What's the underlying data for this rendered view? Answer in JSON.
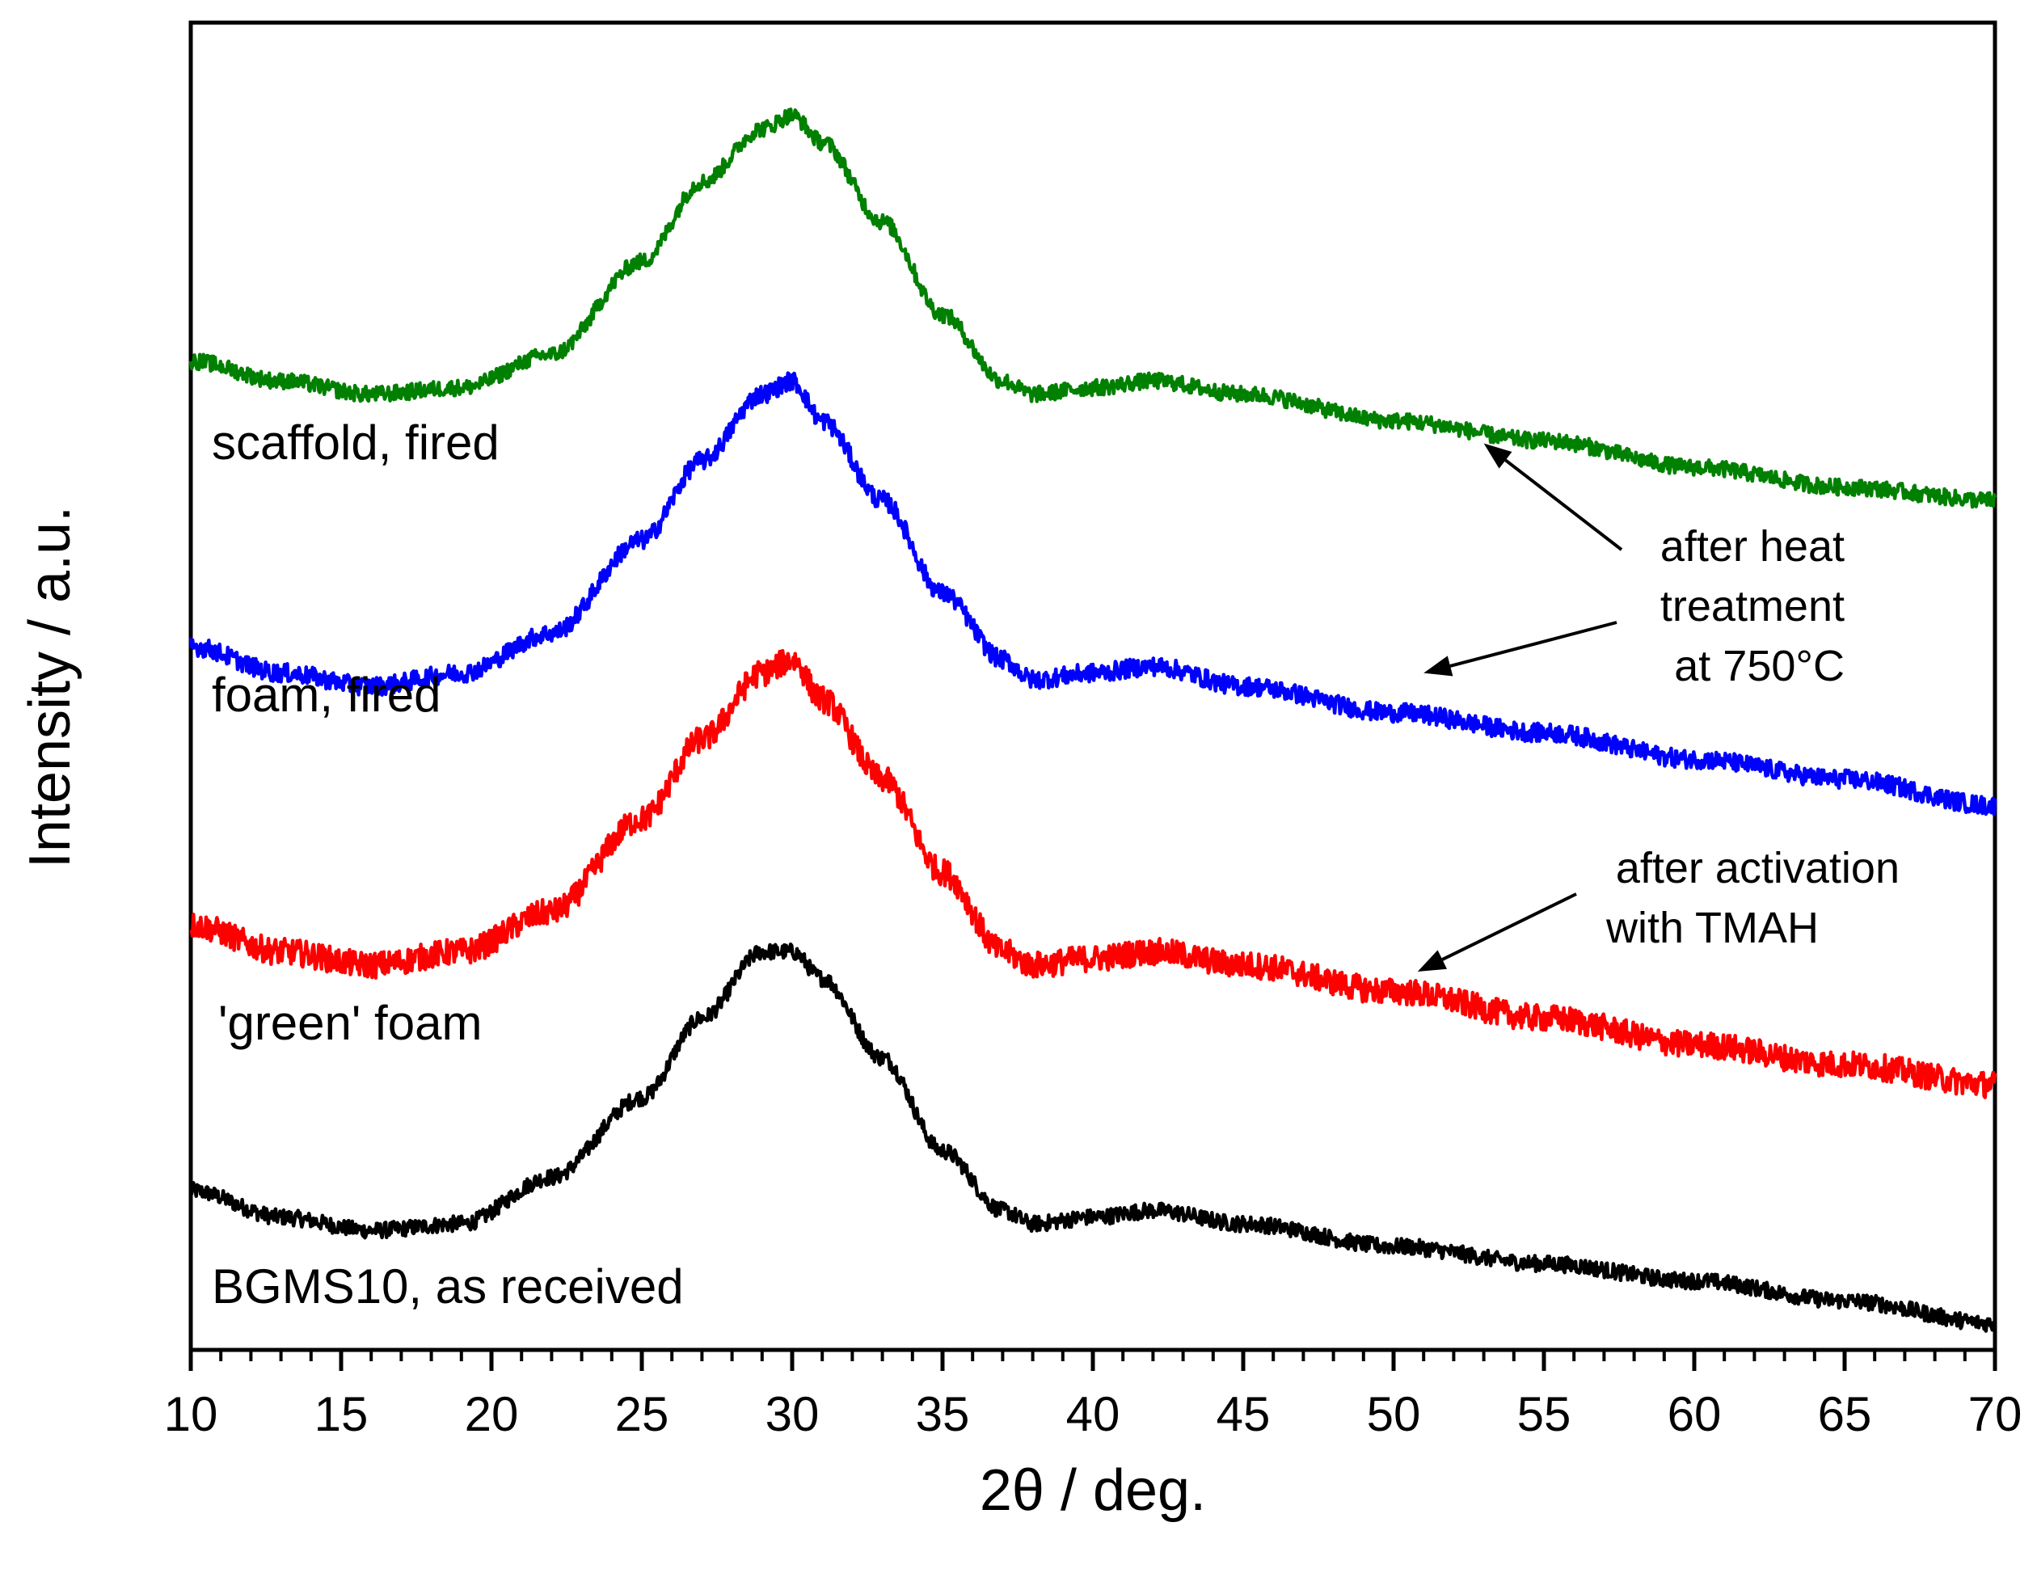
{
  "chart_data": {
    "type": "line",
    "xlabel": "2θ / deg.",
    "ylabel": "Intensity / a.u.",
    "xlim": [
      10,
      70
    ],
    "ylim": [
      0,
      1
    ],
    "xticks": [
      10,
      15,
      20,
      25,
      30,
      35,
      40,
      45,
      50,
      55,
      60,
      65,
      70
    ],
    "grid": false,
    "y_tick_labels_shown": false,
    "series": [
      {
        "name": "BGMS10, as received",
        "color": "#000000",
        "noise": 0.006,
        "x": [
          10,
          13,
          16,
          19,
          22,
          25,
          27,
          29,
          30,
          31,
          33,
          35,
          37,
          38,
          40,
          42,
          45,
          50,
          55,
          60,
          65,
          70
        ],
        "values": [
          0.12,
          0.1,
          0.09,
          0.095,
          0.13,
          0.19,
          0.25,
          0.3,
          0.3,
          0.28,
          0.22,
          0.15,
          0.105,
          0.095,
          0.1,
          0.105,
          0.095,
          0.078,
          0.065,
          0.052,
          0.037,
          0.02
        ]
      },
      {
        "name": "'green' foam",
        "color": "#ff0000",
        "noise": 0.01,
        "x": [
          10,
          13,
          16,
          19,
          22,
          25,
          27,
          29,
          30,
          31,
          33,
          35,
          37,
          38,
          40,
          42,
          45,
          50,
          55,
          60,
          65,
          70
        ],
        "values": [
          0.32,
          0.3,
          0.29,
          0.3,
          0.33,
          0.4,
          0.46,
          0.51,
          0.52,
          0.49,
          0.43,
          0.36,
          0.3,
          0.29,
          0.295,
          0.3,
          0.29,
          0.27,
          0.25,
          0.23,
          0.215,
          0.2
        ]
      },
      {
        "name": "foam, fired",
        "color": "#0000ff",
        "noise": 0.007,
        "x": [
          10,
          13,
          16,
          19,
          22,
          25,
          27,
          29,
          30,
          31,
          33,
          35,
          37,
          38,
          40,
          42,
          45,
          50,
          55,
          60,
          65,
          70
        ],
        "values": [
          0.53,
          0.51,
          0.5,
          0.51,
          0.54,
          0.61,
          0.67,
          0.72,
          0.73,
          0.7,
          0.64,
          0.57,
          0.52,
          0.505,
          0.51,
          0.515,
          0.5,
          0.48,
          0.465,
          0.445,
          0.43,
          0.41
        ]
      },
      {
        "name": "scaffold, fired",
        "color": "#008000",
        "noise": 0.006,
        "x": [
          10,
          13,
          16,
          19,
          22,
          25,
          27,
          29,
          30,
          31,
          33,
          35,
          37,
          38,
          40,
          42,
          45,
          50,
          55,
          60,
          65,
          70
        ],
        "values": [
          0.745,
          0.73,
          0.72,
          0.725,
          0.75,
          0.82,
          0.88,
          0.92,
          0.93,
          0.91,
          0.85,
          0.78,
          0.73,
          0.72,
          0.725,
          0.73,
          0.72,
          0.7,
          0.685,
          0.665,
          0.65,
          0.64
        ]
      }
    ],
    "annotations": [
      {
        "lines": [
          "after heat",
          "treatment",
          "at 750°C"
        ],
        "arrows_to": [
          [
            53,
            0.683
          ],
          [
            51,
            0.51
          ]
        ]
      },
      {
        "lines": [
          "after activation",
          "with TMAH"
        ],
        "arrows_to": [
          [
            50.8,
            0.285
          ]
        ]
      }
    ]
  }
}
